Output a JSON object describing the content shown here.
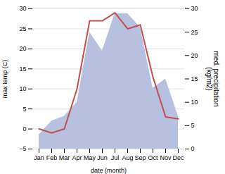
{
  "chart_data": {
    "type": "line",
    "x_label": "date (month)",
    "y_label": "max temp (C)",
    "y2_label": "med. precipitation\n(kg/m2)",
    "categories": [
      "Jan",
      "Feb",
      "Mar",
      "Apr",
      "May",
      "Jun",
      "Jul",
      "Aug",
      "Sep",
      "Oct",
      "Nov",
      "Dec"
    ],
    "series": [
      {
        "type": "area",
        "axis": "y2",
        "color": "#b8c0e0",
        "values": [
          3,
          6,
          7,
          10,
          25,
          21,
          29,
          29,
          26,
          13,
          15,
          7
        ]
      },
      {
        "type": "line",
        "color": "#c0504d",
        "values": [
          0,
          -1,
          0,
          10,
          27,
          27,
          29,
          25,
          26,
          13,
          3,
          2.5
        ]
      }
    ],
    "ylim": [
      -5,
      30
    ],
    "yticks": [
      -5,
      0,
      5,
      10,
      15,
      20,
      25,
      30
    ],
    "y2lim": [
      0,
      30
    ],
    "y2ticks": [
      0,
      5,
      10,
      15,
      20,
      25,
      30
    ],
    "grid": true
  }
}
